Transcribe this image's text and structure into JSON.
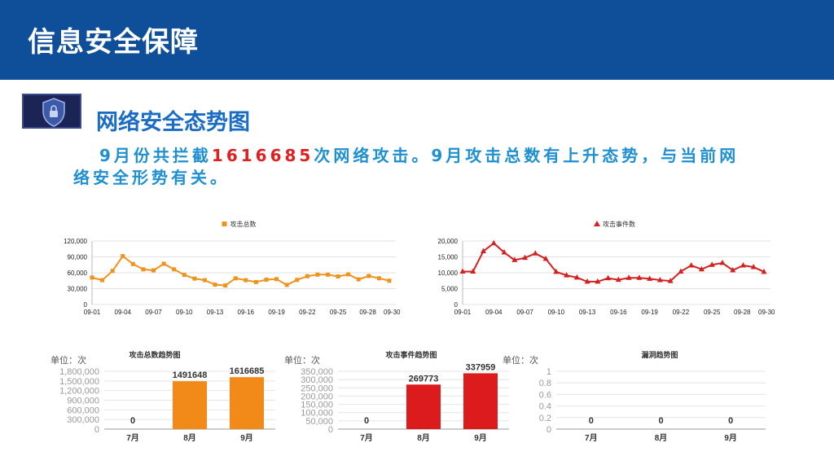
{
  "header": {
    "title": "信息安全保障"
  },
  "section": {
    "title": "网络安全态势图"
  },
  "paragraph": {
    "before": "9月份共拦截",
    "number": "1616685",
    "after": "次网络攻击。9月攻击总数有上升态势，与当前网络安全形势有关。"
  },
  "chart_data": [
    {
      "type": "line",
      "legend": "攻击总数",
      "color": "#f0921e",
      "marker": "square",
      "ylim": [
        0,
        120000
      ],
      "yticks": [
        "0",
        "30,000",
        "60,000",
        "90,000",
        "120,000"
      ],
      "xticks": [
        "09-01",
        "09-04",
        "09-07",
        "09-10",
        "09-13",
        "09-16",
        "09-19",
        "09-22",
        "09-25",
        "09-28",
        "09-30"
      ],
      "values": [
        51000,
        46000,
        63500,
        91500,
        76500,
        66500,
        64500,
        77000,
        66500,
        56000,
        49000,
        46000,
        37500,
        36000,
        49500,
        46000,
        42500,
        47000,
        48000,
        37000,
        46500,
        53500,
        56500,
        56500,
        53000,
        57000,
        47500,
        54000,
        49500,
        45000
      ]
    },
    {
      "type": "line",
      "legend": "攻击事件数",
      "color": "#d42020",
      "marker": "triangle",
      "ylim": [
        0,
        20000
      ],
      "yticks": [
        "0",
        "5,000",
        "10,000",
        "15,000",
        "20,000"
      ],
      "xticks": [
        "09-01",
        "09-04",
        "09-07",
        "09-10",
        "09-13",
        "09-16",
        "09-19",
        "09-22",
        "09-25",
        "09-28",
        "09-30"
      ],
      "values": [
        10400,
        10400,
        16800,
        19300,
        16400,
        14000,
        14700,
        16100,
        14400,
        10300,
        9200,
        8500,
        7200,
        7200,
        8300,
        7800,
        8400,
        8400,
        8100,
        7700,
        7400,
        10400,
        12300,
        11100,
        12500,
        13100,
        10800,
        12300,
        11800,
        10300
      ]
    },
    {
      "type": "bar",
      "title": "攻击总数趋势图",
      "unit": "单位：次",
      "color": "#f28a1a",
      "ylim": [
        0,
        1800000
      ],
      "yticks": [
        "0",
        "300,000",
        "600,000",
        "900,000",
        "1,200,000",
        "1,500,000",
        "1,800,000"
      ],
      "categories": [
        "7月",
        "8月",
        "9月"
      ],
      "values": [
        0,
        1491648,
        1616685
      ],
      "labels": [
        "0",
        "1491648",
        "1616685"
      ]
    },
    {
      "type": "bar",
      "title": "攻击事件趋势图",
      "unit": "单位：次",
      "color": "#dc1c1c",
      "ylim": [
        0,
        350000
      ],
      "yticks": [
        "0",
        "50,000",
        "100,000",
        "150,000",
        "200,000",
        "250,000",
        "300,000",
        "350,000"
      ],
      "categories": [
        "7月",
        "8月",
        "9月"
      ],
      "values": [
        0,
        269773,
        337959
      ],
      "labels": [
        "0",
        "269773",
        "337959"
      ]
    },
    {
      "type": "bar",
      "title": "漏洞趋势图",
      "unit": "单位：次",
      "color": "#888888",
      "ylim": [
        0,
        1
      ],
      "yticks": [
        "0",
        "0.2",
        "0.4",
        "0.6",
        "0.8",
        "1"
      ],
      "categories": [
        "7月",
        "8月",
        "9月"
      ],
      "values": [
        0,
        0,
        0
      ],
      "labels": [
        "0",
        "0",
        "0"
      ]
    }
  ]
}
